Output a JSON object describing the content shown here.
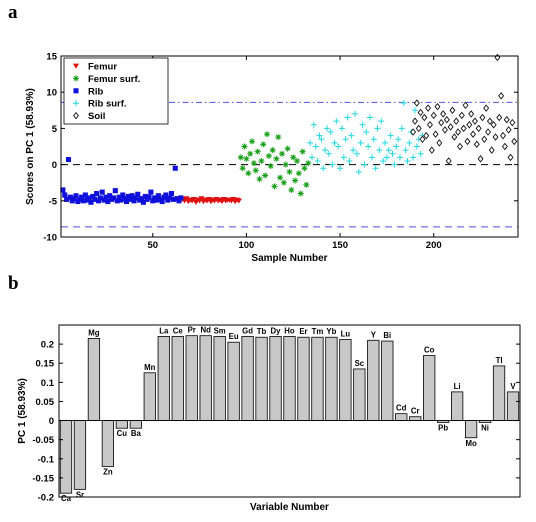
{
  "panel_labels": [
    "a",
    "b"
  ],
  "chart_data": [
    {
      "type": "scatter",
      "panel": "a",
      "xlabel": "Sample Number",
      "ylabel": "Scores on PC 1 (58.93%)",
      "xlim": [
        1,
        245
      ],
      "ylim": [
        -10,
        15
      ],
      "xticks": [
        50,
        100,
        150,
        200
      ],
      "yticks": [
        -10,
        -5,
        0,
        5,
        10,
        15
      ],
      "reference_lines": [
        {
          "y": 8.6,
          "style": "dash-dot",
          "color": "#5050e6"
        },
        {
          "y": 0,
          "style": "dashed",
          "color": "#000000"
        },
        {
          "y": -8.6,
          "style": "dashed",
          "color": "#5050e6"
        }
      ],
      "legend_position": "top-left",
      "series": [
        {
          "name": "Femur",
          "marker": "triangle-down",
          "color": "#e01010",
          "x_start": 66,
          "y": [
            -4.8,
            -5.0,
            -4.7,
            -5.1,
            -4.9,
            -5.0,
            -4.8,
            -5.2,
            -4.9,
            -5.0,
            -4.7,
            -5.1,
            -4.9,
            -5.0,
            -4.8,
            -5.1,
            -4.9,
            -5.0,
            -4.8,
            -5.0,
            -4.9,
            -5.1,
            -4.8,
            -5.0,
            -4.9,
            -4.9,
            -5.0,
            -4.8,
            -5.1,
            -4.9,
            -5.0
          ]
        },
        {
          "name": "Femur surf.",
          "marker": "star",
          "color": "#1aa01a",
          "x_start": 97,
          "y": [
            1.0,
            -0.5,
            2.5,
            0.8,
            -1.2,
            1.5,
            3.2,
            0.2,
            -0.8,
            1.8,
            -2.0,
            0.5,
            2.8,
            -1.5,
            4.2,
            1.2,
            -0.2,
            2.0,
            -3.0,
            0.8,
            3.8,
            -1.8,
            1.5,
            -2.5,
            0.0,
            2.2,
            -1.0,
            -3.5,
            1.0,
            -2.2,
            0.5,
            -1.2,
            -4.0,
            1.8,
            -0.5,
            -2.8,
            0.2
          ]
        },
        {
          "name": "Rib",
          "marker": "square",
          "color": "#1010dd",
          "x_start": 2,
          "y": [
            -3.5,
            -4.2,
            -4.8,
            0.7,
            -4.5,
            -5.0,
            -4.7,
            -4.3,
            -5.1,
            -4.8,
            -4.5,
            -5.0,
            -4.2,
            -4.9,
            -4.6,
            -5.2,
            -4.4,
            -4.8,
            -4.0,
            -5.0,
            -4.6,
            -3.8,
            -4.9,
            -4.5,
            -5.1,
            -4.3,
            -4.8,
            -4.6,
            -3.6,
            -5.0,
            -4.5,
            -4.9,
            -4.2,
            -4.7,
            -5.1,
            -4.4,
            -4.8,
            -4.3,
            -5.0,
            -4.6,
            -4.1,
            -4.9,
            -4.7,
            -5.2,
            -4.4,
            -4.8,
            -4.5,
            -3.8,
            -5.0,
            -4.6,
            -4.9,
            -4.3,
            -4.8,
            -5.1,
            -4.5,
            -4.2,
            -4.9,
            -4.6,
            -4.0,
            -4.8,
            -0.5,
            -4.7,
            -5.0,
            -4.6
          ]
        },
        {
          "name": "Rib surf.",
          "marker": "plus",
          "color": "#22d8e0",
          "x_start": 134,
          "y": [
            3.0,
            1.0,
            5.5,
            2.5,
            0.5,
            4.0,
            3.5,
            -0.5,
            2.0,
            5.0,
            1.5,
            4.5,
            0.0,
            3.0,
            6.0,
            2.5,
            -0.5,
            5.0,
            1.0,
            3.5,
            6.5,
            0.5,
            4.0,
            2.0,
            7.0,
            1.5,
            -1.0,
            3.0,
            5.5,
            0.0,
            4.5,
            2.5,
            6.5,
            1.0,
            3.5,
            -0.5,
            5.0,
            2.0,
            6.0,
            0.5,
            3.0,
            1.0,
            2.0,
            4.0,
            1.5,
            0.0,
            2.5,
            3.5,
            1.0,
            5.0,
            8.5,
            2.0,
            0.5,
            3.0,
            4.5,
            1.0,
            7.5,
            2.5,
            3.5,
            1.5,
            4.0
          ]
        },
        {
          "name": "Soil",
          "marker": "diamond",
          "color": "#111111",
          "x_start": 189,
          "y": [
            4.5,
            6.0,
            8.5,
            5.0,
            7.2,
            3.5,
            6.5,
            4.0,
            7.8,
            5.5,
            2.0,
            6.8,
            4.2,
            8.0,
            3.0,
            5.8,
            7.0,
            4.8,
            6.2,
            0.5,
            5.2,
            7.5,
            3.8,
            6.0,
            4.5,
            2.5,
            6.8,
            5.0,
            8.2,
            3.2,
            5.5,
            7.0,
            4.2,
            6.0,
            2.8,
            5.0,
            0.8,
            6.5,
            3.5,
            7.8,
            4.5,
            6.0,
            2.0,
            5.5,
            3.8,
            14.8,
            6.5,
            9.5,
            4.0,
            2.5,
            6.2,
            4.8,
            1.0,
            5.8,
            3.2
          ]
        }
      ]
    },
    {
      "type": "bar",
      "panel": "b",
      "xlabel": "Variable Number",
      "ylabel": "PC 1 (58.93%)",
      "ylim": [
        -0.2,
        0.25
      ],
      "yticks": [
        -0.2,
        -0.15,
        -0.1,
        -0.05,
        0,
        0.05,
        0.1,
        0.15,
        0.2
      ],
      "categories": [
        "Ca",
        "Sr",
        "Mg",
        "Zn",
        "Cu",
        "Ba",
        "Mn",
        "La",
        "Ce",
        "Pr",
        "Nd",
        "Sm",
        "Eu",
        "Gd",
        "Tb",
        "Dy",
        "Ho",
        "Er",
        "Tm",
        "Yb",
        "Lu",
        "Sc",
        "Y",
        "Bi",
        "Cd",
        "Cr",
        "Co",
        "Pb",
        "Li",
        "Mo",
        "Ni",
        "Tl",
        "V"
      ],
      "values": [
        -0.19,
        -0.18,
        0.215,
        -0.12,
        -0.02,
        -0.02,
        0.125,
        0.22,
        0.22,
        0.222,
        0.222,
        0.22,
        0.205,
        0.22,
        0.218,
        0.22,
        0.22,
        0.218,
        0.218,
        0.218,
        0.212,
        0.135,
        0.21,
        0.208,
        0.018,
        0.01,
        0.17,
        -0.005,
        0.075,
        -0.045,
        -0.005,
        0.143,
        0.075
      ]
    }
  ]
}
